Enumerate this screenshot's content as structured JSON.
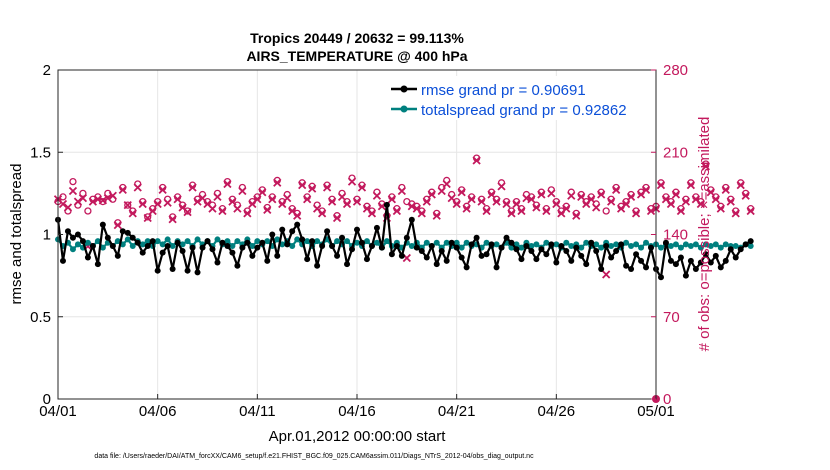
{
  "chart_data": {
    "type": "line",
    "title": [
      "Tropics 20449 / 20632 = 99.113%",
      "AIRS_TEMPERATURE @ 400 hPa"
    ],
    "xlabel": "Apr.01,2012 00:00:00 start",
    "ylabel": "rmse and totalspread",
    "ylabel_right": "# of obs: o=possible; ×=assimilated",
    "x_ticks": [
      "04/01",
      "04/06",
      "04/11",
      "04/16",
      "04/21",
      "04/26",
      "05/01"
    ],
    "xlim_days": [
      0,
      30
    ],
    "ylim": [
      0,
      2
    ],
    "y_ticks": [
      "0",
      "0.5",
      "1",
      "1.5",
      "2"
    ],
    "ylim_right": [
      0,
      280
    ],
    "y_ticks_right": [
      "0",
      "70",
      "140",
      "210",
      "280"
    ],
    "footer": "data file: /Users/raeder/DAI/ATM_forcXX/CAM6_setup/f.e21.FHIST_BGC.f09_025.CAM6assim.011/Diags_NTrS_2012-04/obs_diag_output.nc",
    "colors": {
      "rmse": "#000000",
      "totalspread": "#00807f",
      "obs": "#c3195d",
      "legend_text": "#0b4fd8"
    },
    "series": [
      {
        "name": "rmse grand pr = 0.90691",
        "x_start": 0,
        "x_step": 0.25,
        "values": [
          1.09,
          0.84,
          1.02,
          0.98,
          1.0,
          0.96,
          0.86,
          0.93,
          0.82,
          1.06,
          0.98,
          0.93,
          0.87,
          1.02,
          1.01,
          0.98,
          0.95,
          0.89,
          0.93,
          0.96,
          0.78,
          0.89,
          0.93,
          0.79,
          0.95,
          0.9,
          0.78,
          0.92,
          0.77,
          0.92,
          0.96,
          0.91,
          0.83,
          0.95,
          0.93,
          0.89,
          0.81,
          0.92,
          0.95,
          0.87,
          0.92,
          0.95,
          0.84,
          1.0,
          0.87,
          1.03,
          0.94,
          1.02,
          1.06,
          0.97,
          0.85,
          0.96,
          0.81,
          0.93,
          1.02,
          0.93,
          0.87,
          0.98,
          0.82,
          0.91,
          1.03,
          0.95,
          0.85,
          0.93,
          1.04,
          0.92,
          1.18,
          0.88,
          0.93,
          0.87,
          0.98,
          1.09,
          0.92,
          0.9,
          0.86,
          0.93,
          0.82,
          0.9,
          0.84,
          0.95,
          0.92,
          0.86,
          0.8,
          0.94,
          0.98,
          0.87,
          0.88,
          0.94,
          0.8,
          0.92,
          0.98,
          0.95,
          0.91,
          0.85,
          0.93,
          0.9,
          0.85,
          0.91,
          0.88,
          0.94,
          0.83,
          0.93,
          0.9,
          0.84,
          0.92,
          0.87,
          0.82,
          0.95,
          0.9,
          0.79,
          0.93,
          0.86,
          0.9,
          0.94,
          0.81,
          0.79,
          0.88,
          0.84,
          0.8,
          0.92,
          0.79,
          0.74,
          0.95,
          0.84,
          0.82,
          0.86,
          0.75,
          0.84,
          0.79,
          0.83,
          0.88,
          0.83,
          0.87,
          0.8,
          0.84,
          0.91,
          0.86,
          0.91,
          0.94,
          0.96
        ]
      },
      {
        "name": "totalspread grand pr = 0.92862",
        "x_start": 0,
        "x_step": 0.25,
        "values": [
          0.97,
          0.93,
          0.95,
          0.91,
          0.94,
          0.92,
          0.95,
          0.93,
          0.96,
          0.92,
          0.95,
          0.93,
          0.96,
          0.94,
          0.97,
          0.93,
          0.96,
          0.94,
          0.96,
          0.93,
          0.96,
          0.94,
          0.97,
          0.93,
          0.96,
          0.94,
          0.96,
          0.93,
          0.97,
          0.94,
          0.96,
          0.93,
          0.97,
          0.94,
          0.96,
          0.93,
          0.96,
          0.94,
          0.97,
          0.93,
          0.96,
          0.94,
          0.96,
          0.93,
          0.97,
          0.94,
          0.96,
          0.93,
          0.97,
          0.94,
          0.96,
          0.93,
          0.96,
          0.94,
          0.97,
          0.93,
          0.96,
          0.94,
          0.96,
          0.93,
          0.95,
          0.93,
          0.96,
          0.93,
          0.95,
          0.92,
          0.96,
          0.93,
          0.95,
          0.92,
          0.95,
          0.93,
          0.95,
          0.92,
          0.95,
          0.93,
          0.95,
          0.92,
          0.95,
          0.93,
          0.95,
          0.92,
          0.95,
          0.93,
          0.94,
          0.92,
          0.95,
          0.93,
          0.94,
          0.92,
          0.95,
          0.92,
          0.94,
          0.92,
          0.95,
          0.93,
          0.94,
          0.92,
          0.95,
          0.93,
          0.94,
          0.92,
          0.95,
          0.93,
          0.94,
          0.92,
          0.95,
          0.93,
          0.94,
          0.92,
          0.95,
          0.93,
          0.94,
          0.92,
          0.95,
          0.93,
          0.94,
          0.92,
          0.95,
          0.93,
          0.94,
          0.92,
          0.94,
          0.93,
          0.94,
          0.92,
          0.94,
          0.93,
          0.94,
          0.92,
          0.94,
          0.93,
          0.94,
          0.92,
          0.94,
          0.93,
          0.93,
          0.92,
          0.94,
          0.93
        ]
      },
      {
        "name": "obs_possible",
        "axis": "right",
        "x_start": 0,
        "x_step": 0.25,
        "values": [
          168,
          172,
          160,
          185,
          165,
          175,
          160,
          170,
          172,
          168,
          175,
          170,
          150,
          180,
          165,
          160,
          183,
          168,
          155,
          162,
          168,
          180,
          170,
          155,
          172,
          165,
          160,
          182,
          170,
          174,
          168,
          165,
          175,
          162,
          185,
          170,
          165,
          180,
          160,
          168,
          172,
          178,
          163,
          172,
          186,
          168,
          174,
          162,
          158,
          184,
          172,
          181,
          165,
          160,
          182,
          170,
          156,
          175,
          168,
          188,
          170,
          182,
          164,
          160,
          176,
          166,
          156,
          172,
          162,
          180,
          168,
          166,
          164,
          160,
          170,
          176,
          158,
          180,
          186,
          174,
          168,
          178,
          164,
          172,
          205,
          170,
          162,
          176,
          170,
          184,
          168,
          160,
          168,
          162,
          174,
          172,
          165,
          176,
          162,
          178,
          168,
          160,
          164,
          176,
          158,
          174,
          168,
          172,
          166,
          176,
          160,
          170,
          180,
          164,
          168,
          174,
          160,
          176,
          180,
          162,
          164,
          184,
          172,
          168,
          176,
          162,
          170,
          184,
          172,
          168,
          200,
          178,
          172,
          164,
          180,
          170,
          160,
          184,
          175,
          162
        ]
      },
      {
        "name": "obs_assimilated",
        "axis": "right",
        "x_start": 0,
        "x_step": 0.25,
        "values": [
          170,
          166,
          163,
          177,
          168,
          171,
          130,
          168,
          170,
          169,
          171,
          173,
          148,
          178,
          165,
          158,
          180,
          166,
          154,
          160,
          166,
          178,
          167,
          153,
          170,
          163,
          159,
          180,
          168,
          171,
          166,
          162,
          172,
          160,
          183,
          168,
          162,
          177,
          158,
          166,
          170,
          176,
          161,
          170,
          184,
          166,
          171,
          160,
          156,
          182,
          170,
          179,
          162,
          158,
          180,
          168,
          154,
          172,
          166,
          185,
          168,
          180,
          162,
          158,
          173,
          164,
          154,
          170,
          160,
          177,
          120,
          164,
          162,
          158,
          168,
          174,
          156,
          177,
          183,
          171,
          166,
          176,
          162,
          170,
          203,
          168,
          160,
          174,
          168,
          181,
          166,
          158,
          166,
          160,
          171,
          170,
          163,
          174,
          160,
          175,
          166,
          158,
          162,
          173,
          156,
          172,
          166,
          170,
          163,
          174,
          106,
          168,
          178,
          162,
          166,
          172,
          158,
          174,
          178,
          160,
          162,
          182,
          170,
          166,
          174,
          160,
          168,
          182,
          170,
          166,
          198,
          176,
          170,
          162,
          178,
          168,
          158,
          182,
          173,
          160
        ]
      }
    ],
    "extra_marker": {
      "axis": "right",
      "x": 30,
      "value": 0
    }
  }
}
